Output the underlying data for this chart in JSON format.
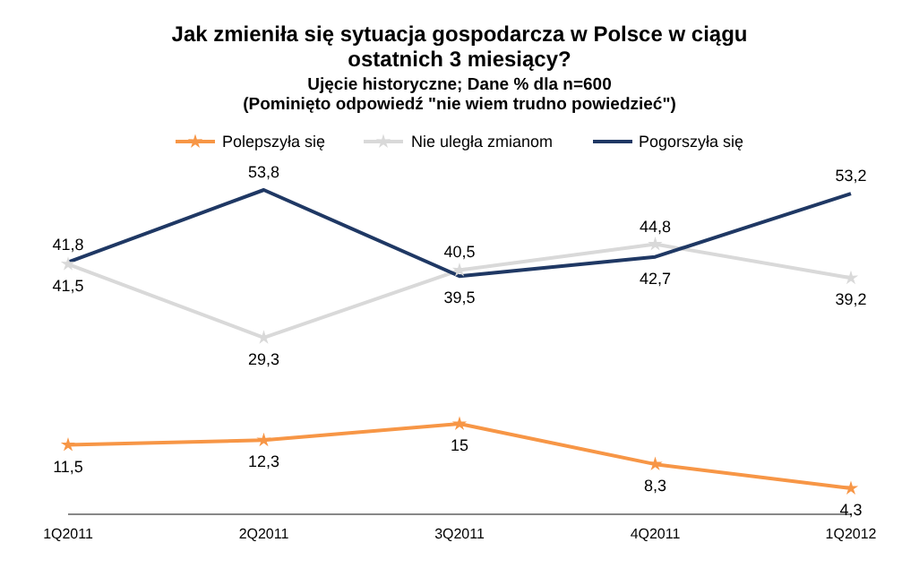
{
  "chart_data": {
    "type": "line",
    "title": "Jak zmieniła się sytuacja gospodarcza  w Polsce w ciągu ostatnich 3 miesiący?",
    "subtitle": "Ujęcie historyczne; Dane % dla n=600\n(Pominięto odpowiedź \"nie wiem trudno powiedzieć\")",
    "categories": [
      "1Q2011",
      "2Q2011",
      "3Q2011",
      "4Q2011",
      "1Q2012"
    ],
    "legend": "top",
    "tick_labels": "x",
    "grid": false,
    "series": [
      {
        "name": "Polepszyła się",
        "color": "#f79646",
        "marker": "star",
        "values": [
          11.5,
          12.3,
          15,
          8.3,
          4.3
        ],
        "value_labels": [
          "11,5",
          "12,3",
          "15",
          "8,3",
          "4,3"
        ]
      },
      {
        "name": "Nie uległa zmianom",
        "color": "#d9d9d9",
        "marker": "star",
        "values": [
          41.5,
          29.3,
          40.5,
          44.8,
          39.2
        ],
        "value_labels": [
          "41,5",
          "29,3",
          "40,5",
          "44,8",
          "39,2"
        ]
      },
      {
        "name": "Pogorszyła się",
        "color": "#1f3864",
        "marker": "none",
        "values": [
          41.8,
          53.8,
          39.5,
          42.7,
          53.2
        ],
        "value_labels": [
          "41,8",
          "53,8",
          "39,5",
          "42,7",
          "53,2"
        ]
      }
    ]
  }
}
